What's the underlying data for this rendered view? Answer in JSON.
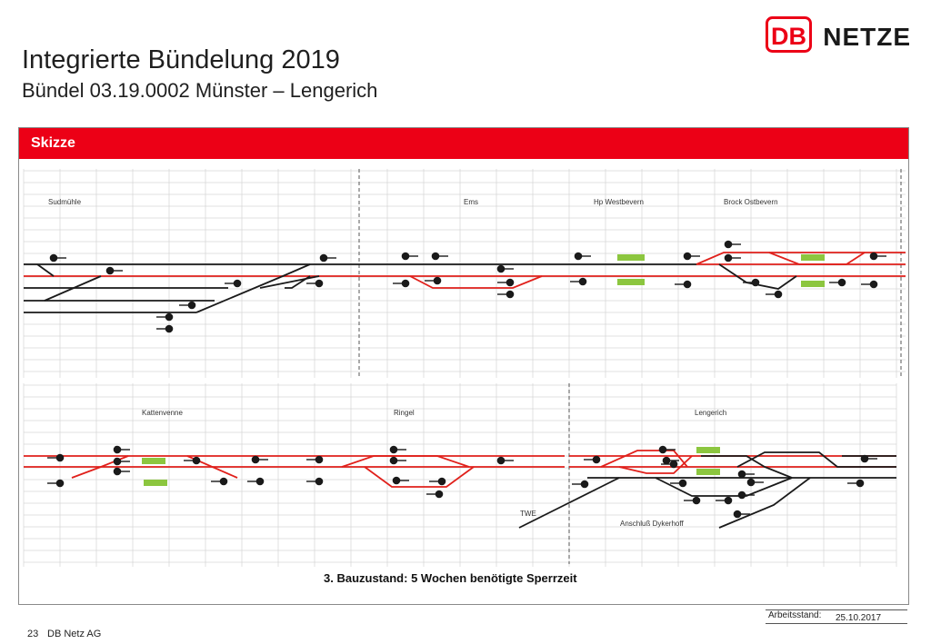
{
  "header": {
    "title": "Integrierte Bündelung 2019",
    "subtitle": "Bündel 03.19.0002 Münster – Lengerich"
  },
  "logo": {
    "mark": "DB",
    "text": "NETZE",
    "brand_color": "#ec0016"
  },
  "section": {
    "label": "Skizze",
    "color": "#ec0016"
  },
  "diagram": {
    "stations_top": [
      "Sudmühle",
      "Ems",
      "Hp Westbevern",
      "Brock Ostbevern"
    ],
    "stations_bottom": [
      "Kattenvenne",
      "Ringel",
      "Lengerich"
    ],
    "branch_labels": [
      "TWE",
      "Anschluß Dykerhoff"
    ],
    "caption": "3. Bauzustand: 5 Wochen benötigte Sperrzeit",
    "colors": {
      "track": "#1a1a1a",
      "closed_track": "#e0201b",
      "construction_marker": "#8cc63f",
      "grid": "#d6d6d6"
    }
  },
  "footer": {
    "page_number": "23",
    "company": "DB Netz AG",
    "status_label": "Arbeitsstand:",
    "status_date": "25.10.2017"
  }
}
